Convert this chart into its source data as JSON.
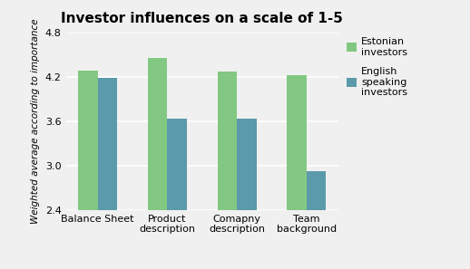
{
  "title": "Investor influences on a scale of 1-5",
  "ylabel": "Weighted average according to importance",
  "categories": [
    "Balance Sheet",
    "Product\ndescription",
    "Comapny\ndescription",
    "Team\nbackground"
  ],
  "estonian_values": [
    4.28,
    4.45,
    4.27,
    4.22
  ],
  "english_values": [
    4.18,
    3.63,
    3.63,
    2.92
  ],
  "estonian_color": "#82c882",
  "english_color": "#5b9aaa",
  "ylim": [
    2.4,
    4.8
  ],
  "yticks": [
    2.4,
    3.0,
    3.6,
    4.2,
    4.8
  ],
  "legend_labels": [
    "Estonian\ninvestors",
    "English\nspeaking\ninvestors"
  ],
  "background_color": "#f0f0f0",
  "bar_width": 0.28,
  "title_fontsize": 11,
  "axis_fontsize": 7.5,
  "tick_fontsize": 8,
  "legend_fontsize": 8
}
